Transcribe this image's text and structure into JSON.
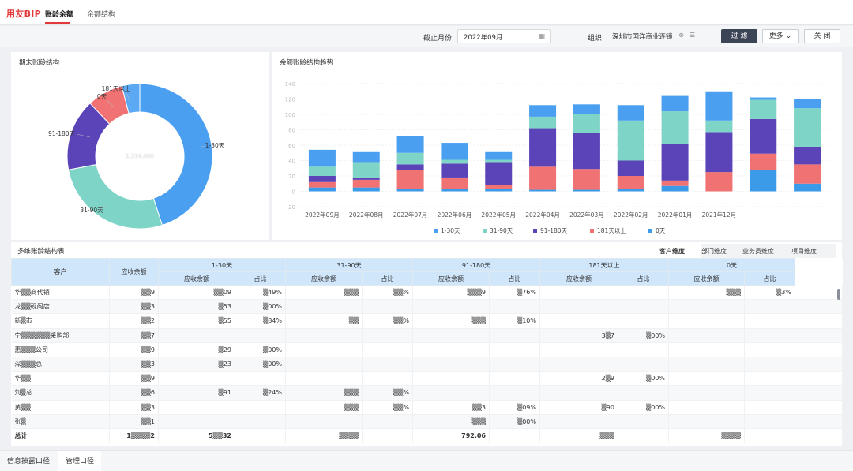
{
  "app": {
    "logo": "用友BIP",
    "tabs": [
      {
        "label": "账龄余额",
        "active": true
      },
      {
        "label": "余额结构",
        "active": false
      }
    ]
  },
  "filters": {
    "month_label": "截止月份",
    "month_value": "2022年09月",
    "org_label": "组织",
    "org_value": "深圳市国洋商业连锁",
    "buttons": {
      "filter": "过 滤",
      "more": "更多",
      "close": "关 闭"
    }
  },
  "colors": {
    "b1_30": "#4a9ff0",
    "b31_90": "#7fd4c8",
    "b91_180": "#5b43b8",
    "b181": "#f07272",
    "b0": "#3b9be8"
  },
  "donut": {
    "title": "期末账龄结构",
    "center_label": "1,234,000",
    "labels": [
      "181天以上",
      "0天",
      "91-180天",
      "31-90天",
      "1-30天"
    ]
  },
  "chart_data": {
    "type": "bar",
    "title": "余额账龄结构趋势",
    "categories": [
      "2022年09月",
      "2022年08月",
      "2022年07月",
      "2022年06月",
      "2022年05月",
      "2022年04月",
      "2022年03月",
      "2022年02月",
      "2022年01月",
      "2021年12月",
      "",
      ""
    ],
    "series": [
      {
        "name": "1-30天",
        "color": "#4a9ff0",
        "values": [
          22,
          13,
          22,
          22,
          10,
          15,
          12,
          20,
          20,
          38,
          3,
          12
        ]
      },
      {
        "name": "31-90天",
        "color": "#7fd4c8",
        "values": [
          12,
          20,
          15,
          5,
          3,
          15,
          25,
          52,
          42,
          15,
          25,
          50
        ]
      },
      {
        "name": "91-180天",
        "color": "#5b43b8",
        "values": [
          8,
          3,
          7,
          18,
          30,
          50,
          47,
          20,
          48,
          52,
          45,
          23
        ]
      },
      {
        "name": "181天以上",
        "color": "#f07272",
        "values": [
          7,
          10,
          25,
          15,
          5,
          30,
          27,
          17,
          7,
          25,
          21,
          25
        ]
      },
      {
        "name": "0天",
        "color": "#3b9be8",
        "values": [
          5,
          5,
          3,
          3,
          3,
          2,
          2,
          3,
          7,
          0,
          28,
          10
        ]
      }
    ],
    "ylim": [
      -20,
      140
    ],
    "grid": true,
    "legend": "bottom"
  },
  "table": {
    "title": "多维账龄结构表",
    "dimension_tabs": [
      "客户维度",
      "部门维度",
      "业务员维度",
      "项目维度"
    ],
    "headers": {
      "customer": "客户",
      "balance": "应收余额",
      "groups": [
        "1-30天",
        "31-90天",
        "91-180天",
        "181天以上",
        "0天"
      ],
      "sub_balance": "应收余额",
      "sub_ratio": "占比"
    },
    "rows": [
      {
        "c": "华▒▒商代销",
        "bal": "▒▒9",
        "g1b": "▒▒09",
        "g1r": "▒49%",
        "g2b": "▒▒▒",
        "g2r": "▒▒%",
        "g3b": "▒▒▒9",
        "g3r": "▒76%",
        "g4b": "",
        "g4r": "",
        "g5b": "▒▒▒",
        "g5r": "▒3%"
      },
      {
        "c": "龙▒▒砚阁店",
        "bal": "▒▒3",
        "g1b": "▒53",
        "g1r": "▒00%",
        "g2b": "",
        "g2r": "",
        "g3b": "",
        "g3r": "",
        "g4b": "",
        "g4r": "",
        "g5b": "",
        "g5r": ""
      },
      {
        "c": "新▒市",
        "bal": "▒▒2",
        "g1b": "▒55",
        "g1r": "▒84%",
        "g2b": "▒▒",
        "g2r": "▒▒%",
        "g3b": "▒▒▒",
        "g3r": "▒10%",
        "g4b": "",
        "g4r": "",
        "g5b": "",
        "g5r": ""
      },
      {
        "c": "宁▒▒▒▒▒▒采购部",
        "bal": "▒▒7",
        "g1b": "",
        "g1r": "",
        "g2b": "",
        "g2r": "",
        "g3b": "",
        "g3r": "",
        "g4b": "3▒7",
        "g4r": "▒00%",
        "g5b": "",
        "g5r": ""
      },
      {
        "c": "惠▒▒▒公司",
        "bal": "▒▒9",
        "g1b": "▒29",
        "g1r": "▒00%",
        "g2b": "",
        "g2r": "",
        "g3b": "",
        "g3r": "",
        "g4b": "",
        "g4r": "",
        "g5b": "",
        "g5r": ""
      },
      {
        "c": "深▒▒▒总",
        "bal": "▒▒3",
        "g1b": "▒23",
        "g1r": "▒00%",
        "g2b": "",
        "g2r": "",
        "g3b": "",
        "g3r": "",
        "g4b": "",
        "g4r": "",
        "g5b": "",
        "g5r": ""
      },
      {
        "c": "华▒▒",
        "bal": "▒▒9",
        "g1b": "",
        "g1r": "",
        "g2b": "",
        "g2r": "",
        "g3b": "",
        "g3r": "",
        "g4b": "2▒9",
        "g4r": "▒00%",
        "g5b": "",
        "g5r": ""
      },
      {
        "c": "刘▒总",
        "bal": "▒▒6",
        "g1b": "▒91",
        "g1r": "▒24%",
        "g2b": "▒▒▒",
        "g2r": "▒▒%",
        "g3b": "",
        "g3r": "",
        "g4b": "",
        "g4r": "",
        "g5b": "",
        "g5r": ""
      },
      {
        "c": "黄▒▒",
        "bal": "▒▒3",
        "g1b": "",
        "g1r": "",
        "g2b": "▒▒▒",
        "g2r": "▒▒%",
        "g3b": "▒▒3",
        "g3r": "▒09%",
        "g4b": "▒90",
        "g4r": "▒00%",
        "g5b": "",
        "g5r": ""
      },
      {
        "c": "张▒",
        "bal": "▒▒1",
        "g1b": "",
        "g1r": "",
        "g2b": "",
        "g2r": "",
        "g3b": "▒▒▒",
        "g3r": "▒00%",
        "g4b": "",
        "g4r": "",
        "g5b": "",
        "g5r": ""
      }
    ],
    "total": {
      "c": "总计",
      "bal": "1▒▒▒▒2",
      "g1b": "5▒▒32",
      "g1r": "",
      "g2b": "▒▒▒▒",
      "g2r": "",
      "g3b": "792.06",
      "g3r": "",
      "g4b": "▒▒▒",
      "g4r": "",
      "g5b": "▒▒▒▒",
      "g5r": ""
    }
  },
  "bottom_tabs": [
    {
      "label": "信息披露口径",
      "active": false
    },
    {
      "label": "管理口径",
      "active": true
    }
  ]
}
